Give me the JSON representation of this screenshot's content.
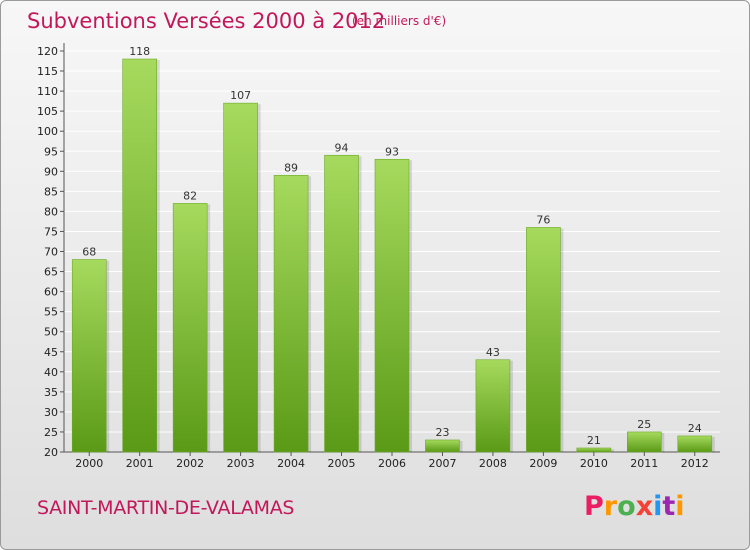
{
  "header": {
    "title": "Subventions Versées 2000 à 2012",
    "unit_note": "(en milliers d'€)"
  },
  "footer": {
    "commune": "SAINT-MARTIN-DE-VALAMAS",
    "logo_letters": [
      "P",
      "r",
      "o",
      "x",
      "i",
      "t",
      "i"
    ],
    "logo_colors": [
      "#e91e63",
      "#ff9800",
      "#4caf50",
      "#f44336",
      "#2196f3",
      "#9c27b0",
      "#ff9800"
    ]
  },
  "colors": {
    "accent": "#c2185b",
    "bar_top": "#a6da5e",
    "bar_bottom": "#5a9a16",
    "grid": "#ffffff"
  },
  "chart_data": {
    "type": "bar",
    "title": "Subventions Versées 2000 à 2012",
    "subtitle": "(en milliers d'€)",
    "xlabel": "",
    "ylabel": "",
    "categories": [
      "2000",
      "2001",
      "2002",
      "2003",
      "2004",
      "2005",
      "2006",
      "2007",
      "2008",
      "2009",
      "2010",
      "2011",
      "2012"
    ],
    "values": [
      68,
      118,
      82,
      107,
      89,
      94,
      93,
      23,
      43,
      76,
      21,
      25,
      24
    ],
    "ylim": [
      20,
      120
    ],
    "yticks": [
      20,
      25,
      30,
      35,
      40,
      45,
      50,
      55,
      60,
      65,
      70,
      75,
      80,
      85,
      90,
      95,
      100,
      105,
      110,
      115,
      120
    ],
    "grid": true,
    "data_labels": true
  }
}
